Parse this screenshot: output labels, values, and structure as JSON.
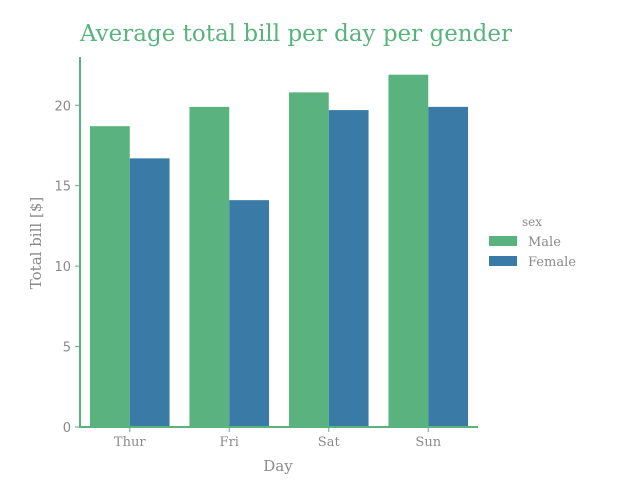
{
  "chart_data": {
    "type": "bar",
    "title": "Average total bill per day per gender",
    "xlabel": "Day",
    "ylabel": "Total bill [$]",
    "categories": [
      "Thur",
      "Fri",
      "Sat",
      "Sun"
    ],
    "series": [
      {
        "name": "Male",
        "values": [
          18.7,
          19.9,
          20.8,
          21.9
        ]
      },
      {
        "name": "Female",
        "values": [
          16.7,
          14.1,
          19.7,
          19.9
        ]
      }
    ],
    "ylim": [
      0,
      23
    ],
    "yticks": [
      0,
      5,
      10,
      15,
      20
    ],
    "legend": {
      "title": "sex",
      "placement": "right"
    },
    "grid": false,
    "colors": {
      "Male": "#5ab37e",
      "Female": "#3a7aa6",
      "axis": "#5ab37e",
      "title": "#5ab37e",
      "text": "#8a8a8a"
    }
  }
}
